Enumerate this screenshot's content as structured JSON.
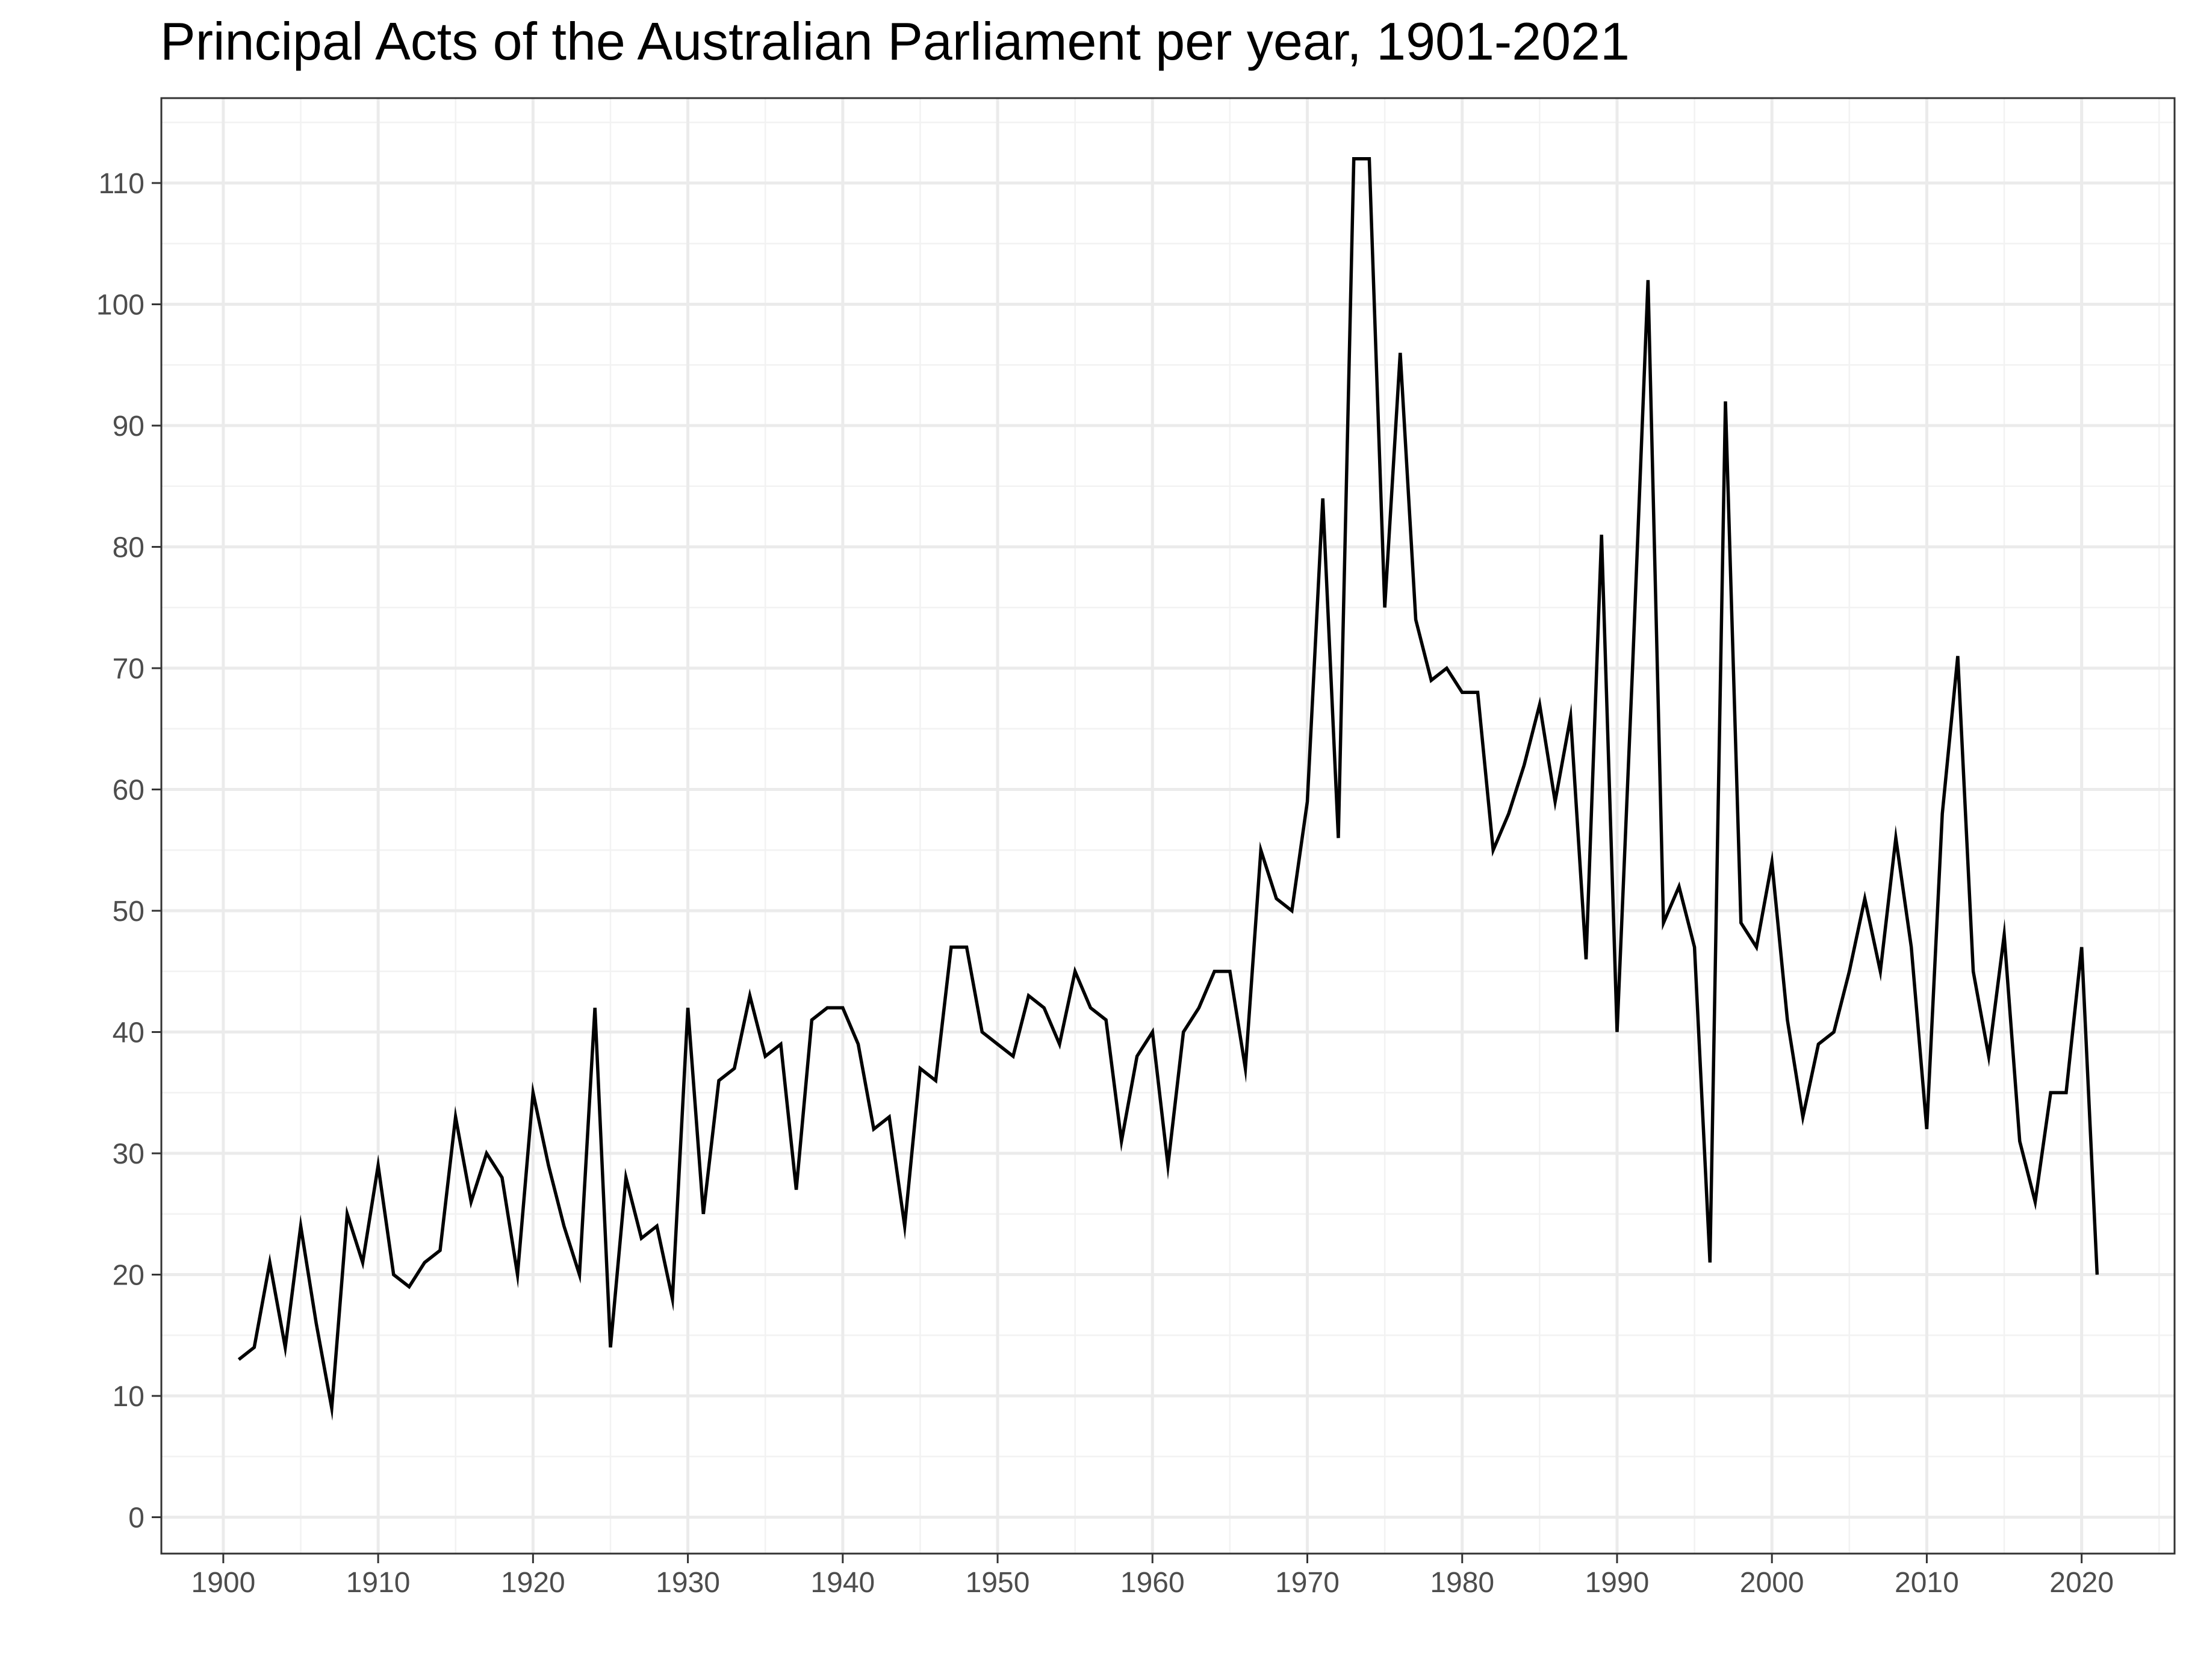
{
  "chart_data": {
    "type": "line",
    "title": "Principal Acts of the Australian Parliament per year, 1901-2021",
    "xlabel": "",
    "ylabel": "",
    "xlim": [
      1896,
      2026
    ],
    "ylim": [
      -3,
      117
    ],
    "x_ticks": [
      1900,
      1910,
      1920,
      1930,
      1940,
      1950,
      1960,
      1970,
      1980,
      1990,
      2000,
      2010,
      2020
    ],
    "y_ticks": [
      0,
      10,
      20,
      30,
      40,
      50,
      60,
      70,
      80,
      90,
      100,
      110
    ],
    "grid": true,
    "legend": "none",
    "series": [
      {
        "color": "#000000",
        "x": [
          1901,
          1902,
          1903,
          1904,
          1905,
          1906,
          1907,
          1908,
          1909,
          1910,
          1911,
          1912,
          1913,
          1914,
          1915,
          1916,
          1917,
          1918,
          1919,
          1920,
          1921,
          1922,
          1923,
          1924,
          1925,
          1926,
          1927,
          1928,
          1929,
          1930,
          1931,
          1932,
          1933,
          1934,
          1935,
          1936,
          1937,
          1938,
          1939,
          1940,
          1941,
          1942,
          1943,
          1944,
          1945,
          1946,
          1947,
          1948,
          1949,
          1950,
          1951,
          1952,
          1953,
          1954,
          1955,
          1956,
          1957,
          1958,
          1959,
          1960,
          1961,
          1962,
          1963,
          1964,
          1965,
          1966,
          1967,
          1968,
          1969,
          1970,
          1971,
          1972,
          1973,
          1974,
          1975,
          1976,
          1977,
          1978,
          1979,
          1980,
          1981,
          1982,
          1983,
          1984,
          1985,
          1986,
          1987,
          1988,
          1989,
          1990,
          1991,
          1992,
          1993,
          1994,
          1995,
          1996,
          1997,
          1998,
          1999,
          2000,
          2001,
          2002,
          2003,
          2004,
          2005,
          2006,
          2007,
          2008,
          2009,
          2010,
          2011,
          2012,
          2013,
          2014,
          2015,
          2016,
          2017,
          2018,
          2019,
          2020,
          2021
        ],
        "values": [
          13,
          14,
          21,
          14,
          24,
          16,
          9,
          25,
          21,
          29,
          20,
          19,
          21,
          22,
          33,
          26,
          30,
          28,
          20,
          35,
          29,
          24,
          20,
          42,
          14,
          28,
          23,
          24,
          18,
          42,
          25,
          36,
          37,
          43,
          38,
          39,
          27,
          41,
          42,
          42,
          39,
          32,
          33,
          24,
          37,
          36,
          47,
          47,
          40,
          39,
          38,
          43,
          42,
          39,
          45,
          42,
          41,
          31,
          38,
          40,
          29,
          40,
          42,
          45,
          45,
          37,
          55,
          51,
          50,
          59,
          84,
          56,
          112,
          112,
          75,
          96,
          74,
          69,
          70,
          68,
          68,
          55,
          58,
          62,
          67,
          59,
          66,
          46,
          81,
          40,
          70,
          102,
          49,
          52,
          47,
          21,
          92,
          49,
          47,
          54,
          41,
          33,
          39,
          40,
          45,
          51,
          45,
          56,
          47,
          32,
          58,
          71,
          45,
          38,
          48,
          31,
          26,
          35,
          35,
          47,
          20
        ]
      }
    ]
  },
  "colors": {
    "grid_major": "#ebebeb",
    "grid_minor": "#f2f2f2",
    "panel_border": "#333333",
    "tick_text": "#4d4d4d",
    "line": "#000000"
  }
}
